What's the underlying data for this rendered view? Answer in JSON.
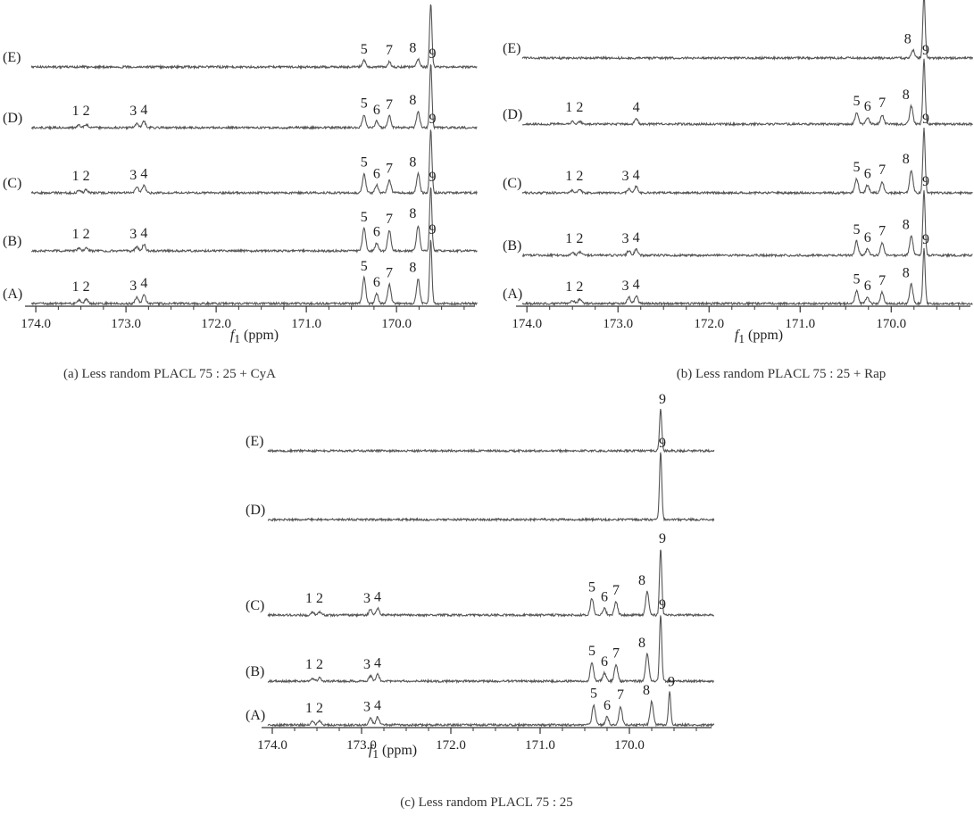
{
  "chart_data": [
    {
      "id": "a",
      "type": "line",
      "caption": "(a)  Less random PLACL 75 : 25 + CyA",
      "xlabel_var": "f",
      "xlabel_sub": "1",
      "xlabel_unit": " (ppm)",
      "xlim": [
        174.1,
        169.15
      ],
      "x_reversed": true,
      "xticks": [
        "174.0",
        "173.0",
        "172.0",
        "171.0",
        "170.0"
      ],
      "xtick_values": [
        174.0,
        173.0,
        172.0,
        171.0,
        170.0
      ],
      "x_end": 169.15,
      "series": [
        {
          "name": "(E)",
          "peaks": [
            {
              "label": "5",
              "x": 170.36,
              "h": 0.1
            },
            {
              "label": "7",
              "x": 170.08,
              "h": 0.08
            },
            {
              "label": "8",
              "x": 169.76,
              "h": 0.12
            },
            {
              "label": "9",
              "x": 169.62,
              "h": 1.0
            }
          ]
        },
        {
          "name": "(D)",
          "peaks": [
            {
              "label": "1",
              "x": 173.52,
              "h": 0.04
            },
            {
              "label": "2",
              "x": 173.44,
              "h": 0.05
            },
            {
              "label": "3",
              "x": 172.88,
              "h": 0.06
            },
            {
              "label": "4",
              "x": 172.8,
              "h": 0.1
            },
            {
              "label": "5",
              "x": 170.36,
              "h": 0.2
            },
            {
              "label": "6",
              "x": 170.22,
              "h": 0.1
            },
            {
              "label": "7",
              "x": 170.08,
              "h": 0.18
            },
            {
              "label": "8",
              "x": 169.76,
              "h": 0.25
            },
            {
              "label": "9",
              "x": 169.62,
              "h": 1.0
            }
          ]
        },
        {
          "name": "(C)",
          "peaks": [
            {
              "label": "1",
              "x": 173.52,
              "h": 0.04
            },
            {
              "label": "2",
              "x": 173.44,
              "h": 0.05
            },
            {
              "label": "3",
              "x": 172.88,
              "h": 0.1
            },
            {
              "label": "4",
              "x": 172.8,
              "h": 0.12
            },
            {
              "label": "5",
              "x": 170.36,
              "h": 0.3
            },
            {
              "label": "6",
              "x": 170.22,
              "h": 0.12
            },
            {
              "label": "7",
              "x": 170.08,
              "h": 0.2
            },
            {
              "label": "8",
              "x": 169.76,
              "h": 0.3
            },
            {
              "label": "9",
              "x": 169.62,
              "h": 1.0
            }
          ]
        },
        {
          "name": "(B)",
          "peaks": [
            {
              "label": "1",
              "x": 173.52,
              "h": 0.04
            },
            {
              "label": "2",
              "x": 173.44,
              "h": 0.05
            },
            {
              "label": "3",
              "x": 172.88,
              "h": 0.06
            },
            {
              "label": "4",
              "x": 172.8,
              "h": 0.1
            },
            {
              "label": "5",
              "x": 170.36,
              "h": 0.35
            },
            {
              "label": "6",
              "x": 170.22,
              "h": 0.12
            },
            {
              "label": "7",
              "x": 170.08,
              "h": 0.32
            },
            {
              "label": "8",
              "x": 169.76,
              "h": 0.4
            },
            {
              "label": "9",
              "x": 169.62,
              "h": 1.0
            }
          ]
        },
        {
          "name": "(A)",
          "peaks": [
            {
              "label": "1",
              "x": 173.52,
              "h": 0.05
            },
            {
              "label": "2",
              "x": 173.44,
              "h": 0.07
            },
            {
              "label": "3",
              "x": 172.88,
              "h": 0.1
            },
            {
              "label": "4",
              "x": 172.8,
              "h": 0.14
            },
            {
              "label": "5",
              "x": 170.36,
              "h": 0.4
            },
            {
              "label": "6",
              "x": 170.22,
              "h": 0.15
            },
            {
              "label": "7",
              "x": 170.08,
              "h": 0.3
            },
            {
              "label": "8",
              "x": 169.76,
              "h": 0.38
            },
            {
              "label": "9",
              "x": 169.62,
              "h": 1.0
            }
          ]
        }
      ]
    },
    {
      "id": "b",
      "type": "line",
      "caption": "(b)  Less random PLACL 75 : 25 + Rap",
      "xlabel_var": "f",
      "xlabel_sub": "1",
      "xlabel_unit": " (ppm)",
      "xlim": [
        174.1,
        169.15
      ],
      "x_reversed": true,
      "xticks": [
        "174.0",
        "173.0",
        "172.0",
        "171.0",
        "170.0"
      ],
      "xtick_values": [
        174.0,
        173.0,
        172.0,
        171.0,
        170.0
      ],
      "x_end": 169.15,
      "series": [
        {
          "name": "(E)",
          "peaks": [
            {
              "label": "8",
              "x": 169.76,
              "h": 0.12
            },
            {
              "label": "9",
              "x": 169.64,
              "h": 1.0
            }
          ]
        },
        {
          "name": "(D)",
          "peaks": [
            {
              "label": "1",
              "x": 173.5,
              "h": 0.04
            },
            {
              "label": "2",
              "x": 173.42,
              "h": 0.04
            },
            {
              "label": "4",
              "x": 172.8,
              "h": 0.08
            },
            {
              "label": "5",
              "x": 170.38,
              "h": 0.18
            },
            {
              "label": "6",
              "x": 170.26,
              "h": 0.1
            },
            {
              "label": "7",
              "x": 170.1,
              "h": 0.15
            },
            {
              "label": "8",
              "x": 169.78,
              "h": 0.28
            },
            {
              "label": "9",
              "x": 169.64,
              "h": 1.0
            }
          ]
        },
        {
          "name": "(C)",
          "peaks": [
            {
              "label": "1",
              "x": 173.5,
              "h": 0.04
            },
            {
              "label": "2",
              "x": 173.42,
              "h": 0.05
            },
            {
              "label": "3",
              "x": 172.88,
              "h": 0.06
            },
            {
              "label": "4",
              "x": 172.8,
              "h": 0.1
            },
            {
              "label": "5",
              "x": 170.38,
              "h": 0.22
            },
            {
              "label": "6",
              "x": 170.26,
              "h": 0.12
            },
            {
              "label": "7",
              "x": 170.1,
              "h": 0.18
            },
            {
              "label": "8",
              "x": 169.78,
              "h": 0.35
            },
            {
              "label": "9",
              "x": 169.64,
              "h": 1.0
            }
          ]
        },
        {
          "name": "(B)",
          "peaks": [
            {
              "label": "1",
              "x": 173.5,
              "h": 0.05
            },
            {
              "label": "2",
              "x": 173.42,
              "h": 0.05
            },
            {
              "label": "3",
              "x": 172.88,
              "h": 0.08
            },
            {
              "label": "4",
              "x": 172.8,
              "h": 0.1
            },
            {
              "label": "5",
              "x": 170.38,
              "h": 0.22
            },
            {
              "label": "6",
              "x": 170.26,
              "h": 0.1
            },
            {
              "label": "7",
              "x": 170.1,
              "h": 0.2
            },
            {
              "label": "8",
              "x": 169.78,
              "h": 0.3
            },
            {
              "label": "9",
              "x": 169.64,
              "h": 1.0
            }
          ]
        },
        {
          "name": "(A)",
          "peaks": [
            {
              "label": "1",
              "x": 173.5,
              "h": 0.05
            },
            {
              "label": "2",
              "x": 173.42,
              "h": 0.07
            },
            {
              "label": "3",
              "x": 172.88,
              "h": 0.1
            },
            {
              "label": "4",
              "x": 172.8,
              "h": 0.12
            },
            {
              "label": "5",
              "x": 170.38,
              "h": 0.2
            },
            {
              "label": "6",
              "x": 170.26,
              "h": 0.1
            },
            {
              "label": "7",
              "x": 170.1,
              "h": 0.18
            },
            {
              "label": "8",
              "x": 169.78,
              "h": 0.3
            },
            {
              "label": "9",
              "x": 169.64,
              "h": 0.85
            }
          ]
        }
      ]
    },
    {
      "id": "c",
      "type": "line",
      "caption": "(c)  Less random PLACL 75 : 25",
      "xlabel_var": "f",
      "xlabel_sub": "1",
      "xlabel_unit": " (ppm)",
      "xlim": [
        174.1,
        169.1
      ],
      "x_reversed": true,
      "xticks": [
        "174.0",
        "173.0",
        "172.0",
        "171.0",
        "170.0"
      ],
      "xtick_values": [
        174.0,
        173.0,
        172.0,
        171.0,
        170.0
      ],
      "x_end": 169.1,
      "series": [
        {
          "name": "(E)",
          "peaks": [
            {
              "label": "9",
              "x": 169.65,
              "h": 0.9
            }
          ]
        },
        {
          "name": "(D)",
          "peaks": [
            {
              "label": "9",
              "x": 169.65,
              "h": 1.0
            }
          ]
        },
        {
          "name": "(C)",
          "peaks": [
            {
              "label": "1",
              "x": 173.55,
              "h": 0.04
            },
            {
              "label": "2",
              "x": 173.47,
              "h": 0.05
            },
            {
              "label": "3",
              "x": 172.9,
              "h": 0.08
            },
            {
              "label": "4",
              "x": 172.82,
              "h": 0.1
            },
            {
              "label": "5",
              "x": 170.42,
              "h": 0.25
            },
            {
              "label": "6",
              "x": 170.28,
              "h": 0.1
            },
            {
              "label": "7",
              "x": 170.15,
              "h": 0.2
            },
            {
              "label": "8",
              "x": 169.8,
              "h": 0.35
            },
            {
              "label": "9",
              "x": 169.65,
              "h": 1.0
            }
          ]
        },
        {
          "name": "(B)",
          "peaks": [
            {
              "label": "1",
              "x": 173.55,
              "h": 0.04
            },
            {
              "label": "2",
              "x": 173.47,
              "h": 0.05
            },
            {
              "label": "3",
              "x": 172.9,
              "h": 0.08
            },
            {
              "label": "4",
              "x": 172.82,
              "h": 0.1
            },
            {
              "label": "5",
              "x": 170.42,
              "h": 0.28
            },
            {
              "label": "6",
              "x": 170.28,
              "h": 0.12
            },
            {
              "label": "7",
              "x": 170.15,
              "h": 0.25
            },
            {
              "label": "8",
              "x": 169.8,
              "h": 0.4
            },
            {
              "label": "9",
              "x": 169.65,
              "h": 1.0
            }
          ]
        },
        {
          "name": "(A)",
          "peaks": [
            {
              "label": "1",
              "x": 173.55,
              "h": 0.05
            },
            {
              "label": "2",
              "x": 173.47,
              "h": 0.06
            },
            {
              "label": "3",
              "x": 172.9,
              "h": 0.1
            },
            {
              "label": "4",
              "x": 172.82,
              "h": 0.12
            },
            {
              "label": "5",
              "x": 170.4,
              "h": 0.3
            },
            {
              "label": "6",
              "x": 170.25,
              "h": 0.12
            },
            {
              "label": "7",
              "x": 170.1,
              "h": 0.28
            },
            {
              "label": "8",
              "x": 169.75,
              "h": 0.35
            },
            {
              "label": "9",
              "x": 169.55,
              "h": 0.5
            }
          ]
        }
      ]
    }
  ]
}
